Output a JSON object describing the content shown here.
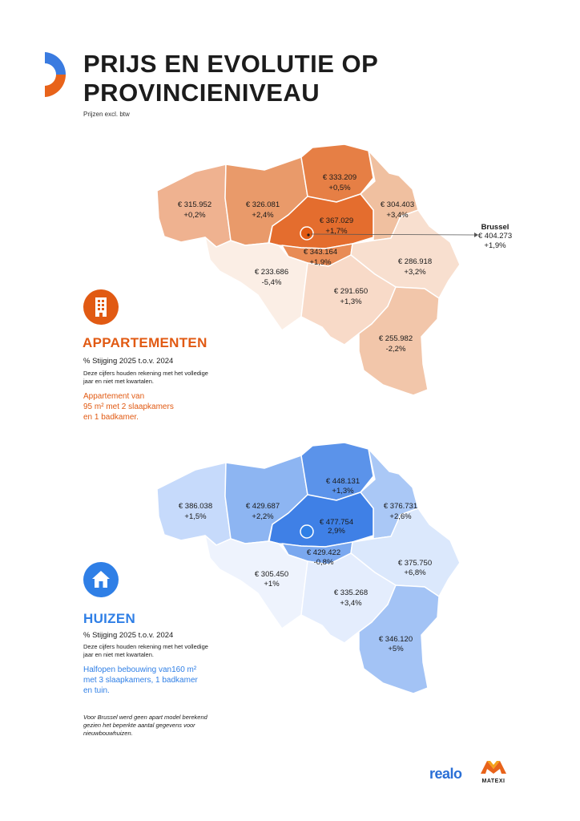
{
  "header": {
    "title_line1": "PRIJS EN EVOLUTIE OP",
    "title_line2": "PROVINCIENIVEAU",
    "subtitle": "Prijzen excl. btw"
  },
  "colors": {
    "apartments_accent": "#e15a13",
    "houses_accent": "#2f7fe6"
  },
  "apartments": {
    "icon": "apartment-building-icon",
    "title": "APPARTEMENTEN",
    "stat_label": "% Stijging 2025 t.o.v. 2024",
    "note": "Deze cijfers houden rekening met het volledige jaar en niet met kwartalen.",
    "desc_line1": "Appartement van",
    "desc_line2": "95 m² met 2 slaapkamers",
    "desc_line3": "en 1 badkamer.",
    "regions": {
      "west": {
        "price": "€ 315.952",
        "change": "+0,2%"
      },
      "east_fl": {
        "price": "€ 326.081",
        "change": "+2,4%"
      },
      "antwerp": {
        "price": "€ 333.209",
        "change": "+0,5%"
      },
      "limburg": {
        "price": "€ 304.403",
        "change": "+3,4%"
      },
      "flemish_brabant": {
        "price": "€ 367.029",
        "change": "+1,7%"
      },
      "walloon_brabant": {
        "price": "€ 343.164",
        "change": "+1,9%"
      },
      "hainaut": {
        "price": "€ 233.686",
        "change": "-5,4%"
      },
      "liege": {
        "price": "€ 286.918",
        "change": "+3,2%"
      },
      "namur": {
        "price": "€ 291.650",
        "change": "+1,3%"
      },
      "luxembourg": {
        "price": "€ 255.982",
        "change": "-2,2%"
      }
    },
    "brussels": {
      "name": "Brussel",
      "price": "€ 404.273",
      "change": "+1,9%"
    }
  },
  "houses": {
    "icon": "house-icon",
    "title": "HUIZEN",
    "stat_label": "% Stijging 2025 t.o.v. 2024",
    "note": "Deze cijfers houden rekening met het volledige jaar en niet met kwartalen.",
    "desc_line1": "Halfopen bebouwing van160 m²",
    "desc_line2": "met 3 slaapkamers, 1 badkamer",
    "desc_line3": "en tuin.",
    "regions": {
      "west": {
        "price": "€ 386.038",
        "change": "+1,5%"
      },
      "east_fl": {
        "price": "€ 429.687",
        "change": "+2,2%"
      },
      "antwerp": {
        "price": "€ 448.131",
        "change": "+1,3%"
      },
      "limburg": {
        "price": "€ 376.731",
        "change": "+2,6%"
      },
      "flemish_brabant": {
        "price": "€ 477.754",
        "change": "2,9%"
      },
      "walloon_brabant": {
        "price": "€ 429.422",
        "change": "-0,8%"
      },
      "hainaut": {
        "price": "€ 305.450",
        "change": "+1%"
      },
      "liege": {
        "price": "€ 375.750",
        "change": "+6,8%"
      },
      "namur": {
        "price": "€ 335.268",
        "change": "+3,4%"
      },
      "luxembourg": {
        "price": "€ 346.120",
        "change": "+5%"
      }
    }
  },
  "footnote": "Voor Brussel werd geen apart model berekend gezien het beperkte aantal gegevens voor nieuwbouwhuizen.",
  "logos": {
    "realo": "realo",
    "matexi": "MATEXI"
  }
}
